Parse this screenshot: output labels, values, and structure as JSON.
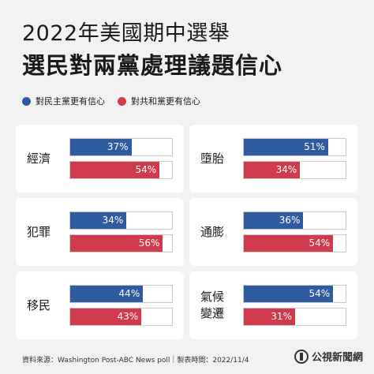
{
  "header": {
    "title": "2022年美國期中選舉",
    "subtitle": "選民對兩黨處理議題信心"
  },
  "legend": [
    {
      "label": "對民主黨更有信心",
      "color": "#2f5b9f"
    },
    {
      "label": "對共和黨更有信心",
      "color": "#cf3a4c"
    }
  ],
  "chart_data": {
    "type": "bar",
    "categories": [
      "經濟",
      "墮胎",
      "犯罪",
      "通膨",
      "移民",
      "氣候變遷"
    ],
    "series": [
      {
        "name": "對民主黨更有信心",
        "values": [
          37,
          51,
          34,
          36,
          44,
          54
        ],
        "color": "#2f5b9f"
      },
      {
        "name": "對共和黨更有信心",
        "values": [
          54,
          34,
          56,
          54,
          43,
          31
        ],
        "color": "#cf3a4c"
      }
    ],
    "value_suffix": "%",
    "ylim": [
      0,
      100
    ]
  },
  "footer": {
    "source": "資料來源：Washington Post-ABC News poll｜製表時間：2022/11/4",
    "logo": "公視新聞網"
  }
}
